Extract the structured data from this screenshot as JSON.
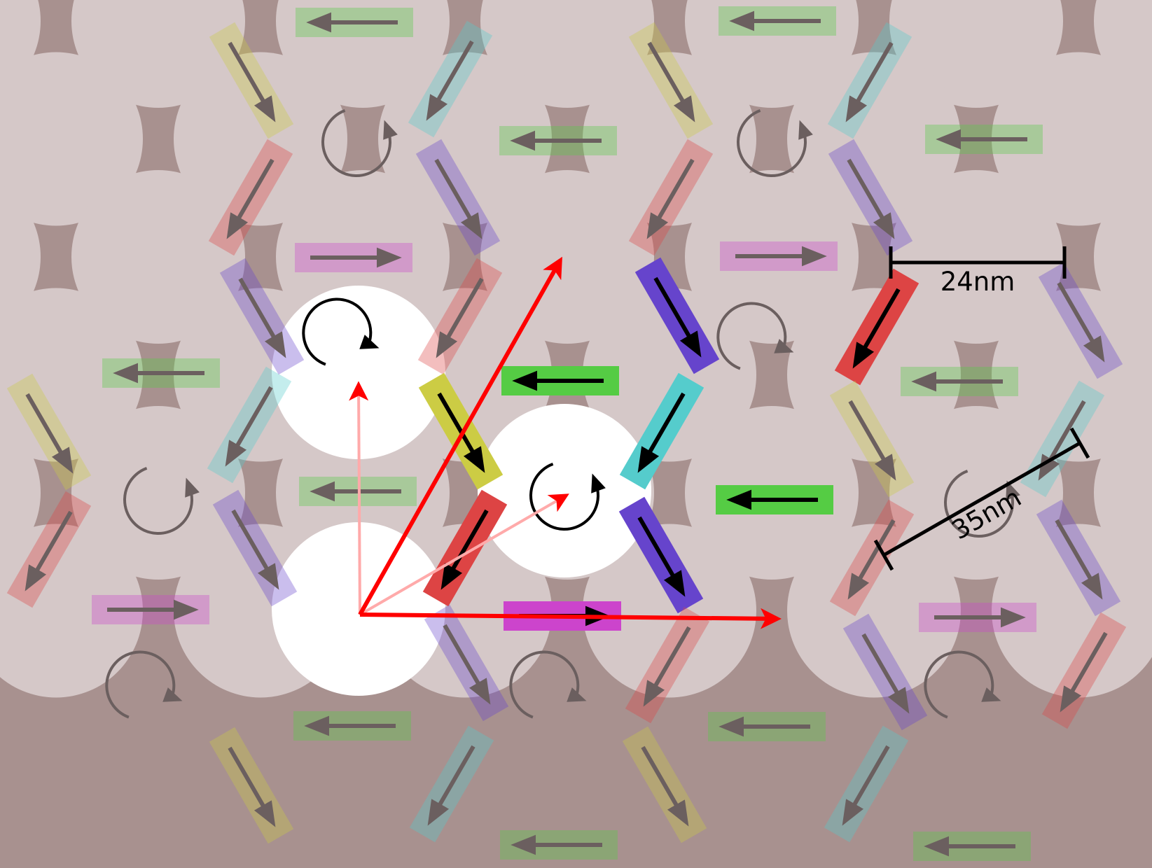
{
  "diagram": {
    "scale_bars": {
      "diameter_label": "24nm",
      "period_label": "35nm"
    },
    "legend_colors": {
      "background": "#a8918f",
      "disc_faded": "#d5c8c8",
      "disc_highlight": "#ffffff",
      "lattice_vector": "#ff0000",
      "basis_vector": "#ffaaaa",
      "rotation_arrow_faded": "#6b5f5f",
      "rotation_arrow_active": "#000000"
    },
    "magnet_colors": {
      "green": "#55cc44",
      "cyan": "#55cccc",
      "blue": "#6644cc",
      "red": "#dd4444",
      "yellow": "#cccc44",
      "magenta": "#cc44cc"
    },
    "highlighted_cells": [
      "unit-cell-origin",
      "unit-cell-top",
      "unit-cell-center"
    ]
  }
}
